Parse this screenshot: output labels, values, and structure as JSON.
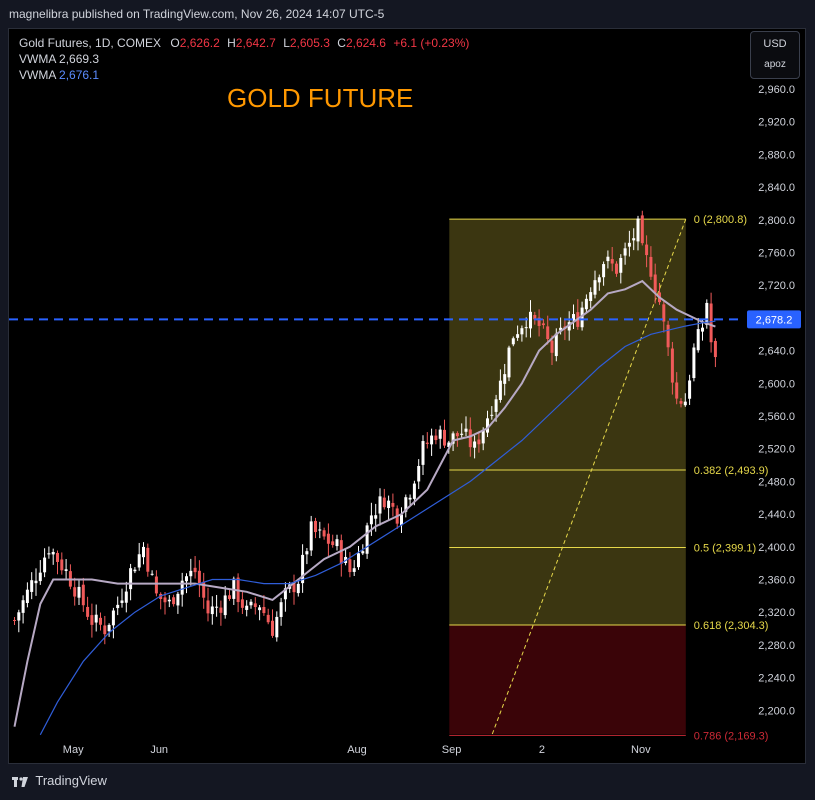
{
  "header": {
    "published_line": "magnelibra published on TradingView.com, Nov 26, 2024 14:07 UTC-5"
  },
  "legend": {
    "symbol": "Gold Futures, 1D, COMEX",
    "o_label": "O",
    "o_val": "2,626.2",
    "h_label": "H",
    "h_val": "2,642.7",
    "l_label": "L",
    "l_val": "2,605.3",
    "c_label": "C",
    "c_val": "2,624.6",
    "change": "+6.1 (+0.23%)",
    "vwma1_label": "VWMA",
    "vwma1_val": "2,669.3",
    "vwma2_label": "VWMA",
    "vwma2_val": "2,676.1"
  },
  "currency": {
    "code": "USD",
    "unit": "apoz"
  },
  "annotation": "GOLD FUTURE",
  "footer": {
    "brand": "TradingView"
  },
  "colors": {
    "bull": "#ffffff",
    "bear": "#f05a5a",
    "vwma_fast": "#b7a9c4",
    "vwma_slow": "#2f5dd8",
    "price_line": "#2962ff",
    "fib_zone": "#3b3611",
    "fib_deep": "#3a0408",
    "fib_line": "#e6d84a",
    "fib_deep_line": "#cc2a36"
  },
  "chart_data": {
    "type": "candlestick",
    "y_axis": {
      "min": 2180,
      "max": 2980,
      "position": "right",
      "ticks": [
        "2,960.0",
        "2,920.0",
        "2,880.0",
        "2,840.0",
        "2,800.0",
        "2,760.0",
        "2,720.0",
        "2,680.0",
        "2,640.0",
        "2,600.0",
        "2,560.0",
        "2,520.0",
        "2,480.0",
        "2,440.0",
        "2,400.0",
        "2,360.0",
        "2,320.0",
        "2,280.0",
        "2,240.0",
        "2,200.0"
      ],
      "tick_values": [
        2960,
        2920,
        2880,
        2840,
        2800,
        2760,
        2720,
        2680,
        2640,
        2600,
        2560,
        2520,
        2480,
        2440,
        2400,
        2360,
        2320,
        2280,
        2240,
        2200
      ]
    },
    "x_axis": {
      "labels": [
        {
          "text": "May",
          "bar": 14
        },
        {
          "text": "Jun",
          "bar": 34
        },
        {
          "text": "Aug",
          "bar": 80
        },
        {
          "text": "Sep",
          "bar": 102
        },
        {
          "text": "2",
          "bar": 123
        },
        {
          "text": "Nov",
          "bar": 146
        }
      ]
    },
    "current_price": {
      "value": 2678.2,
      "label": "2,678.2"
    },
    "fibonacci": {
      "start_bar": 101,
      "end_bar": 156,
      "levels": [
        {
          "ratio": "0",
          "value": 2800.8,
          "label": "0 (2,800.8)"
        },
        {
          "ratio": "0.382",
          "value": 2493.9,
          "label": "0.382 (2,493.9)"
        },
        {
          "ratio": "0.5",
          "value": 2399.1,
          "label": "0.5 (2,399.1)"
        },
        {
          "ratio": "0.618",
          "value": 2304.3,
          "label": "0.618 (2,304.3)"
        },
        {
          "ratio": "0.786",
          "value": 2169.3,
          "label": "0.786 (2,169.3)"
        }
      ]
    },
    "anchors": [
      [
        0,
        2310
      ],
      [
        4,
        2355
      ],
      [
        8,
        2400
      ],
      [
        12,
        2370
      ],
      [
        15,
        2340
      ],
      [
        18,
        2310
      ],
      [
        21,
        2300
      ],
      [
        24,
        2330
      ],
      [
        27,
        2370
      ],
      [
        30,
        2400
      ],
      [
        33,
        2340
      ],
      [
        36,
        2330
      ],
      [
        39,
        2360
      ],
      [
        42,
        2370
      ],
      [
        45,
        2320
      ],
      [
        48,
        2330
      ],
      [
        51,
        2350
      ],
      [
        54,
        2320
      ],
      [
        57,
        2330
      ],
      [
        60,
        2300
      ],
      [
        63,
        2340
      ],
      [
        66,
        2360
      ],
      [
        69,
        2420
      ],
      [
        72,
        2410
      ],
      [
        75,
        2400
      ],
      [
        78,
        2370
      ],
      [
        80,
        2390
      ],
      [
        83,
        2440
      ],
      [
        86,
        2460
      ],
      [
        89,
        2440
      ],
      [
        92,
        2470
      ],
      [
        95,
        2520
      ],
      [
        98,
        2540
      ],
      [
        101,
        2530
      ],
      [
        104,
        2540
      ],
      [
        107,
        2520
      ],
      [
        110,
        2560
      ],
      [
        113,
        2600
      ],
      [
        116,
        2660
      ],
      [
        119,
        2680
      ],
      [
        122,
        2670
      ],
      [
        125,
        2640
      ],
      [
        128,
        2670
      ],
      [
        131,
        2680
      ],
      [
        134,
        2720
      ],
      [
        137,
        2750
      ],
      [
        140,
        2740
      ],
      [
        143,
        2770
      ],
      [
        145,
        2790
      ],
      [
        146,
        2760
      ],
      [
        148,
        2740
      ],
      [
        150,
        2700
      ],
      [
        152,
        2640
      ],
      [
        154,
        2580
      ],
      [
        156,
        2580
      ],
      [
        158,
        2640
      ],
      [
        160,
        2670
      ],
      [
        161,
        2700
      ],
      [
        162,
        2650
      ],
      [
        163,
        2625
      ]
    ],
    "series": [
      {
        "name": "VWMA",
        "kind": "line",
        "value_last": 2669.3,
        "points": [
          [
            0,
            2180
          ],
          [
            3,
            2260
          ],
          [
            6,
            2330
          ],
          [
            9,
            2360
          ],
          [
            12,
            2360
          ],
          [
            18,
            2360
          ],
          [
            24,
            2355
          ],
          [
            30,
            2355
          ],
          [
            36,
            2355
          ],
          [
            42,
            2355
          ],
          [
            48,
            2350
          ],
          [
            54,
            2345
          ],
          [
            60,
            2335
          ],
          [
            66,
            2360
          ],
          [
            72,
            2385
          ],
          [
            78,
            2400
          ],
          [
            84,
            2425
          ],
          [
            90,
            2440
          ],
          [
            96,
            2470
          ],
          [
            100,
            2510
          ],
          [
            102,
            2530
          ],
          [
            106,
            2535
          ],
          [
            110,
            2545
          ],
          [
            114,
            2570
          ],
          [
            118,
            2600
          ],
          [
            122,
            2640
          ],
          [
            126,
            2660
          ],
          [
            130,
            2675
          ],
          [
            134,
            2690
          ],
          [
            138,
            2710
          ],
          [
            142,
            2715
          ],
          [
            146,
            2725
          ],
          [
            150,
            2705
          ],
          [
            154,
            2690
          ],
          [
            158,
            2680
          ],
          [
            160,
            2675
          ],
          [
            163,
            2669.3
          ]
        ]
      },
      {
        "name": "VWMA",
        "kind": "line",
        "value_last": 2676.1,
        "points": [
          [
            6,
            2170
          ],
          [
            10,
            2210
          ],
          [
            16,
            2260
          ],
          [
            22,
            2295
          ],
          [
            28,
            2320
          ],
          [
            34,
            2340
          ],
          [
            40,
            2350
          ],
          [
            46,
            2360
          ],
          [
            52,
            2360
          ],
          [
            58,
            2355
          ],
          [
            64,
            2355
          ],
          [
            70,
            2365
          ],
          [
            76,
            2380
          ],
          [
            82,
            2400
          ],
          [
            88,
            2420
          ],
          [
            94,
            2440
          ],
          [
            100,
            2460
          ],
          [
            106,
            2480
          ],
          [
            112,
            2505
          ],
          [
            118,
            2530
          ],
          [
            124,
            2560
          ],
          [
            130,
            2590
          ],
          [
            136,
            2620
          ],
          [
            142,
            2645
          ],
          [
            148,
            2660
          ],
          [
            152,
            2665
          ],
          [
            156,
            2670
          ],
          [
            160,
            2674
          ],
          [
            163,
            2676.1
          ]
        ]
      }
    ],
    "candles_count": 164
  }
}
